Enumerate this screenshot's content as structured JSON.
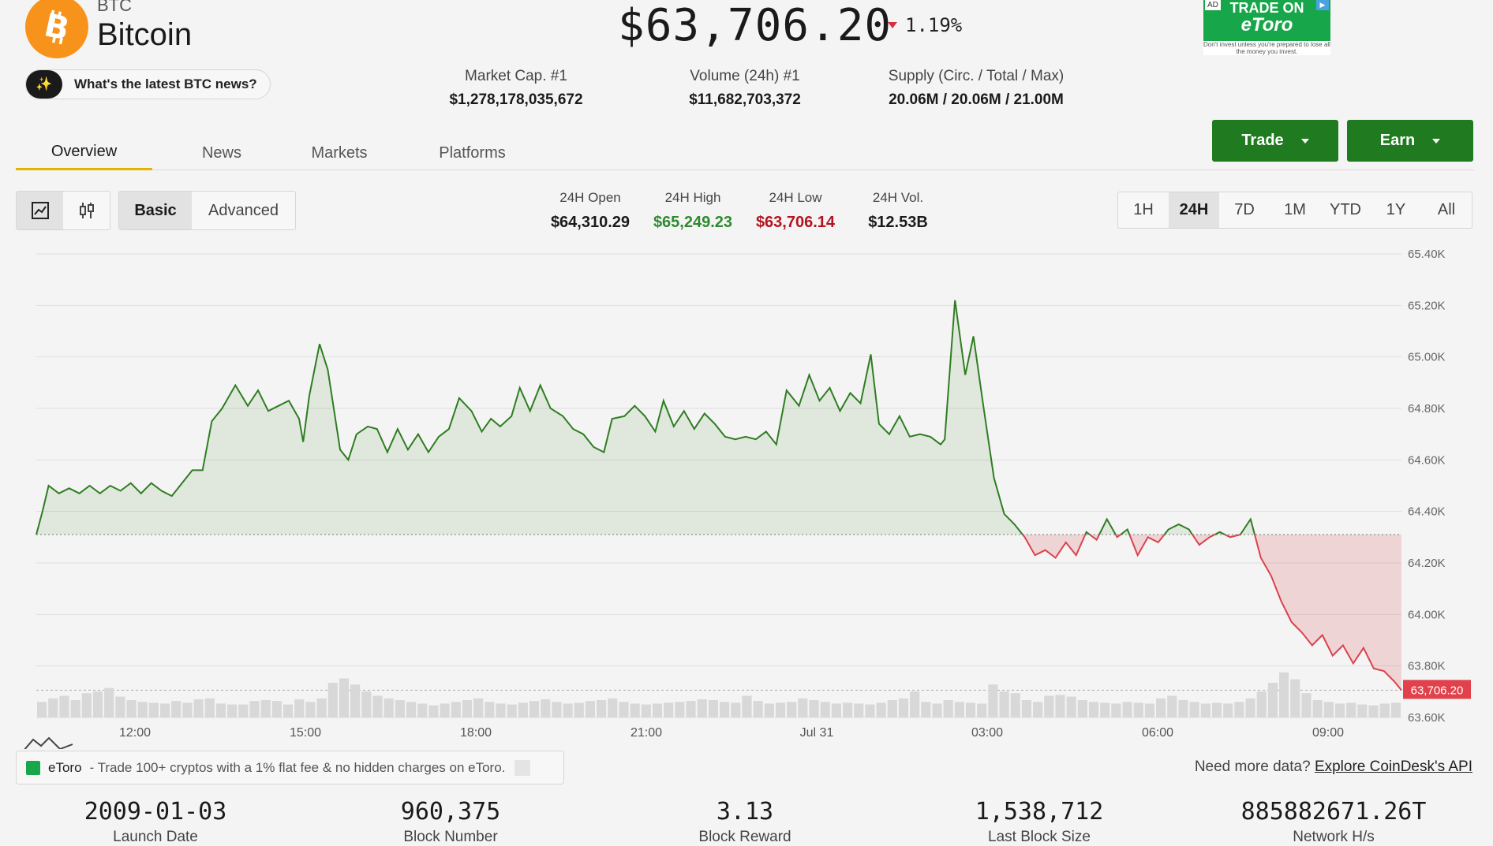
{
  "coin": {
    "ticker": "BTC",
    "name": "Bitcoin",
    "logo_icon": "bitcoin-icon",
    "brand_color": "#f7931a"
  },
  "news_pill": {
    "icon": "sparkle-icon",
    "label": "What's the latest BTC news?"
  },
  "price": {
    "value": "$63,706.20",
    "change": "1.19%",
    "direction": "down"
  },
  "stats": [
    {
      "label": "Market Cap. #1",
      "value": "$1,278,178,035,672"
    },
    {
      "label": "Volume (24h) #1",
      "value": "$11,682,703,372"
    },
    {
      "label": "Supply (Circ. / Total / Max)",
      "value": "20.06M / 20.06M / 21.00M"
    }
  ],
  "ad_banner": {
    "tag": "AD",
    "line1": "TRADE ON",
    "line2": "eToro",
    "disclaimer": "Don't invest unless you're prepared to lose all the money you invest."
  },
  "tabs": [
    {
      "label": "Overview",
      "active": true
    },
    {
      "label": "News"
    },
    {
      "label": "Markets"
    },
    {
      "label": "Platforms"
    }
  ],
  "actions": {
    "trade": "Trade",
    "earn": "Earn",
    "button_color": "#207a1f"
  },
  "chart_controls": {
    "icons": [
      "line-chart-icon",
      "candlestick-icon"
    ],
    "modes": [
      "Basic",
      "Advanced"
    ],
    "active_mode": "Basic",
    "ranges": [
      "1H",
      "24H",
      "7D",
      "1M",
      "YTD",
      "1Y",
      "All"
    ],
    "active_range": "24H"
  },
  "day_stats": [
    {
      "label": "24H Open",
      "value": "$64,310.29",
      "color": "#1a1a1a"
    },
    {
      "label": "24H High",
      "value": "$65,249.23",
      "color": "#2f8a2f"
    },
    {
      "label": "24H Low",
      "value": "$63,706.14",
      "color": "#b3141f"
    },
    {
      "label": "24H Vol.",
      "value": "$12.53B",
      "color": "#1a1a1a"
    }
  ],
  "chart_data": {
    "type": "line",
    "baseline": 64310.29,
    "last_label": "63,706.20",
    "ylim": [
      63600,
      65400
    ],
    "yticks": [
      "65.40K",
      "65.20K",
      "65.00K",
      "64.80K",
      "64.60K",
      "64.40K",
      "64.20K",
      "64.00K",
      "63.80K",
      "63.60K"
    ],
    "xticks": [
      "12:00",
      "15:00",
      "18:00",
      "21:00",
      "Jul 31",
      "03:00",
      "06:00",
      "09:00"
    ],
    "up_color": "#2f7d22",
    "down_color": "#d9434d",
    "series": [
      {
        "x": 0,
        "y": 64310
      },
      {
        "x": 0.6,
        "y": 64400
      },
      {
        "x": 1.2,
        "y": 64500
      },
      {
        "x": 2.2,
        "y": 64470
      },
      {
        "x": 3.2,
        "y": 64490
      },
      {
        "x": 4.2,
        "y": 64470
      },
      {
        "x": 5.2,
        "y": 64500
      },
      {
        "x": 6.2,
        "y": 64470
      },
      {
        "x": 7.2,
        "y": 64500
      },
      {
        "x": 8.2,
        "y": 64480
      },
      {
        "x": 9.2,
        "y": 64510
      },
      {
        "x": 10.2,
        "y": 64470
      },
      {
        "x": 11.2,
        "y": 64510
      },
      {
        "x": 12.2,
        "y": 64480
      },
      {
        "x": 13.2,
        "y": 64460
      },
      {
        "x": 14.2,
        "y": 64510
      },
      {
        "x": 15.2,
        "y": 64560
      },
      {
        "x": 16.2,
        "y": 64560
      },
      {
        "x": 17.1,
        "y": 64750
      },
      {
        "x": 18.1,
        "y": 64800
      },
      {
        "x": 19.4,
        "y": 64890
      },
      {
        "x": 20.6,
        "y": 64810
      },
      {
        "x": 21.6,
        "y": 64870
      },
      {
        "x": 22.6,
        "y": 64790
      },
      {
        "x": 23.6,
        "y": 64810
      },
      {
        "x": 24.6,
        "y": 64830
      },
      {
        "x": 25.6,
        "y": 64760
      },
      {
        "x": 26.0,
        "y": 64670
      },
      {
        "x": 26.6,
        "y": 64850
      },
      {
        "x": 27.6,
        "y": 65050
      },
      {
        "x": 28.4,
        "y": 64950
      },
      {
        "x": 29.6,
        "y": 64640
      },
      {
        "x": 30.4,
        "y": 64600
      },
      {
        "x": 31.2,
        "y": 64700
      },
      {
        "x": 32.3,
        "y": 64730
      },
      {
        "x": 33.2,
        "y": 64720
      },
      {
        "x": 34.2,
        "y": 64630
      },
      {
        "x": 35.2,
        "y": 64720
      },
      {
        "x": 36.2,
        "y": 64640
      },
      {
        "x": 37.2,
        "y": 64700
      },
      {
        "x": 38.2,
        "y": 64630
      },
      {
        "x": 39.2,
        "y": 64690
      },
      {
        "x": 40.2,
        "y": 64720
      },
      {
        "x": 41.2,
        "y": 64840
      },
      {
        "x": 42.4,
        "y": 64790
      },
      {
        "x": 43.4,
        "y": 64710
      },
      {
        "x": 44.3,
        "y": 64760
      },
      {
        "x": 45.2,
        "y": 64730
      },
      {
        "x": 46.3,
        "y": 64770
      },
      {
        "x": 47.1,
        "y": 64880
      },
      {
        "x": 48.1,
        "y": 64790
      },
      {
        "x": 49.1,
        "y": 64890
      },
      {
        "x": 50.1,
        "y": 64800
      },
      {
        "x": 51.3,
        "y": 64770
      },
      {
        "x": 52.3,
        "y": 64720
      },
      {
        "x": 53.3,
        "y": 64700
      },
      {
        "x": 54.3,
        "y": 64650
      },
      {
        "x": 55.3,
        "y": 64630
      },
      {
        "x": 56.1,
        "y": 64760
      },
      {
        "x": 57.3,
        "y": 64770
      },
      {
        "x": 58.3,
        "y": 64810
      },
      {
        "x": 59.3,
        "y": 64770
      },
      {
        "x": 60.3,
        "y": 64710
      },
      {
        "x": 61.1,
        "y": 64830
      },
      {
        "x": 62.1,
        "y": 64730
      },
      {
        "x": 63.1,
        "y": 64790
      },
      {
        "x": 64.1,
        "y": 64720
      },
      {
        "x": 65.1,
        "y": 64780
      },
      {
        "x": 66.1,
        "y": 64740
      },
      {
        "x": 67.1,
        "y": 64690
      },
      {
        "x": 68.1,
        "y": 64680
      },
      {
        "x": 69.1,
        "y": 64690
      },
      {
        "x": 70.1,
        "y": 64680
      },
      {
        "x": 71.1,
        "y": 64710
      },
      {
        "x": 72.1,
        "y": 64660
      },
      {
        "x": 73.1,
        "y": 64870
      },
      {
        "x": 74.3,
        "y": 64810
      },
      {
        "x": 75.3,
        "y": 64930
      },
      {
        "x": 76.3,
        "y": 64830
      },
      {
        "x": 77.3,
        "y": 64880
      },
      {
        "x": 78.3,
        "y": 64790
      },
      {
        "x": 79.3,
        "y": 64860
      },
      {
        "x": 80.3,
        "y": 64820
      },
      {
        "x": 81.3,
        "y": 65010
      },
      {
        "x": 82.1,
        "y": 64740
      },
      {
        "x": 83.1,
        "y": 64700
      },
      {
        "x": 84.1,
        "y": 64770
      },
      {
        "x": 85.1,
        "y": 64690
      },
      {
        "x": 86.1,
        "y": 64700
      },
      {
        "x": 87.1,
        "y": 64690
      },
      {
        "x": 88.1,
        "y": 64660
      },
      {
        "x": 88.5,
        "y": 64680
      },
      {
        "x": 89.5,
        "y": 65220
      },
      {
        "x": 90.5,
        "y": 64930
      },
      {
        "x": 91.3,
        "y": 65080
      },
      {
        "x": 92.3,
        "y": 64800
      },
      {
        "x": 93.3,
        "y": 64530
      },
      {
        "x": 94.3,
        "y": 64390
      },
      {
        "x": 95.3,
        "y": 64350
      },
      {
        "x": 96.3,
        "y": 64300
      },
      {
        "x": 97.3,
        "y": 64230
      },
      {
        "x": 98.3,
        "y": 64250
      },
      {
        "x": 99.3,
        "y": 64220
      },
      {
        "x": 100.3,
        "y": 64280
      },
      {
        "x": 101.3,
        "y": 64230
      },
      {
        "x": 102.3,
        "y": 64320
      },
      {
        "x": 103.3,
        "y": 64290
      },
      {
        "x": 104.3,
        "y": 64370
      },
      {
        "x": 105.3,
        "y": 64300
      },
      {
        "x": 106.3,
        "y": 64330
      },
      {
        "x": 107.3,
        "y": 64230
      },
      {
        "x": 108.3,
        "y": 64300
      },
      {
        "x": 109.3,
        "y": 64280
      },
      {
        "x": 110.3,
        "y": 64330
      },
      {
        "x": 111.3,
        "y": 64350
      },
      {
        "x": 112.3,
        "y": 64330
      },
      {
        "x": 113.3,
        "y": 64270
      },
      {
        "x": 114.3,
        "y": 64300
      },
      {
        "x": 115.3,
        "y": 64320
      },
      {
        "x": 116.3,
        "y": 64300
      },
      {
        "x": 117.3,
        "y": 64310
      },
      {
        "x": 118.3,
        "y": 64370
      },
      {
        "x": 119.3,
        "y": 64220
      },
      {
        "x": 120.3,
        "y": 64150
      },
      {
        "x": 121.3,
        "y": 64050
      },
      {
        "x": 122.3,
        "y": 63970
      },
      {
        "x": 123.3,
        "y": 63930
      },
      {
        "x": 124.3,
        "y": 63880
      },
      {
        "x": 125.3,
        "y": 63920
      },
      {
        "x": 126.3,
        "y": 63840
      },
      {
        "x": 127.3,
        "y": 63880
      },
      {
        "x": 128.3,
        "y": 63810
      },
      {
        "x": 129.3,
        "y": 63870
      },
      {
        "x": 130.3,
        "y": 63790
      },
      {
        "x": 131.3,
        "y": 63780
      },
      {
        "x": 132.3,
        "y": 63740
      },
      {
        "x": 133.0,
        "y": 63706
      }
    ],
    "volume": [
      18,
      22,
      25,
      20,
      28,
      30,
      34,
      24,
      20,
      18,
      17,
      16,
      19,
      17,
      21,
      22,
      16,
      15,
      15,
      19,
      20,
      19,
      15,
      21,
      18,
      22,
      40,
      45,
      38,
      30,
      25,
      22,
      20,
      18,
      16,
      14,
      16,
      18,
      20,
      22,
      18,
      16,
      15,
      17,
      19,
      21,
      18,
      16,
      17,
      19,
      20,
      22,
      18,
      16,
      15,
      16,
      17,
      18,
      19,
      21,
      20,
      18,
      17,
      25,
      19,
      16,
      17,
      18,
      22,
      20,
      18,
      16,
      17,
      16,
      15,
      17,
      20,
      22,
      30,
      18,
      16,
      20,
      18,
      17,
      16,
      38,
      30,
      28,
      20,
      18,
      25,
      26,
      24,
      20,
      18,
      17,
      16,
      18,
      17,
      16,
      22,
      25,
      20,
      18,
      16,
      17,
      16,
      18,
      22,
      30,
      40,
      52,
      44,
      28,
      20,
      18,
      16,
      17,
      15,
      14,
      16,
      17
    ]
  },
  "promo": {
    "icon": "etoro-icon",
    "brand": "eToro",
    "text": "- Trade 100+ cryptos with a 1% flat fee & no hidden charges on eToro."
  },
  "api": {
    "prompt": "Need more data?",
    "link": "Explore CoinDesk's API"
  },
  "block_stats": [
    {
      "value": "2009-01-03",
      "label": "Launch Date"
    },
    {
      "value": "960,375",
      "label": "Block Number"
    },
    {
      "value": "3.13",
      "label": "Block Reward"
    },
    {
      "value": "1,538,712",
      "label": "Last Block Size"
    },
    {
      "value": "885882671.26T",
      "label": "Network H/s"
    }
  ]
}
